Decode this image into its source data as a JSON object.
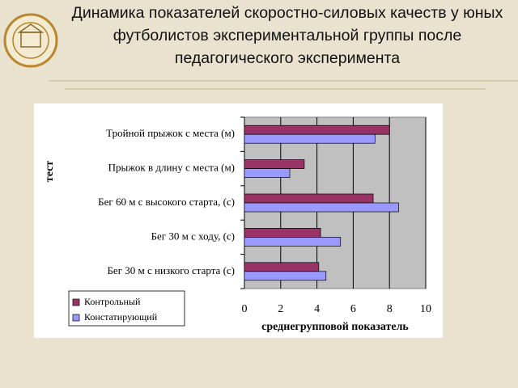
{
  "chart_data": {
    "type": "barh",
    "title": "Динамика показателей скоростно-силовых качеств у юных футболистов экспериментальной группы после педагогического эксперимента",
    "categories": [
      "Тройной прыжок с места (м)",
      "Прыжок в длину с места (м)",
      "Бег 60 м с высокого старта, (с)",
      "Бег 30 м с ходу, (с)",
      "Бег 30 м с низкого старта (с)"
    ],
    "series": [
      {
        "name": "Контрольный",
        "color": "#993366",
        "values": [
          8.0,
          3.3,
          7.1,
          4.2,
          4.1
        ]
      },
      {
        "name": "Констатирующий",
        "color": "#9999ff",
        "values": [
          7.2,
          2.5,
          8.5,
          5.3,
          4.5
        ]
      }
    ],
    "xlim": [
      0,
      10
    ],
    "xticks": [
      0,
      2,
      4,
      6,
      8,
      10
    ],
    "grid": true,
    "xlabel": "среднегрупповой показатель",
    "ylabel": "тест",
    "legend": "bottom-left"
  }
}
